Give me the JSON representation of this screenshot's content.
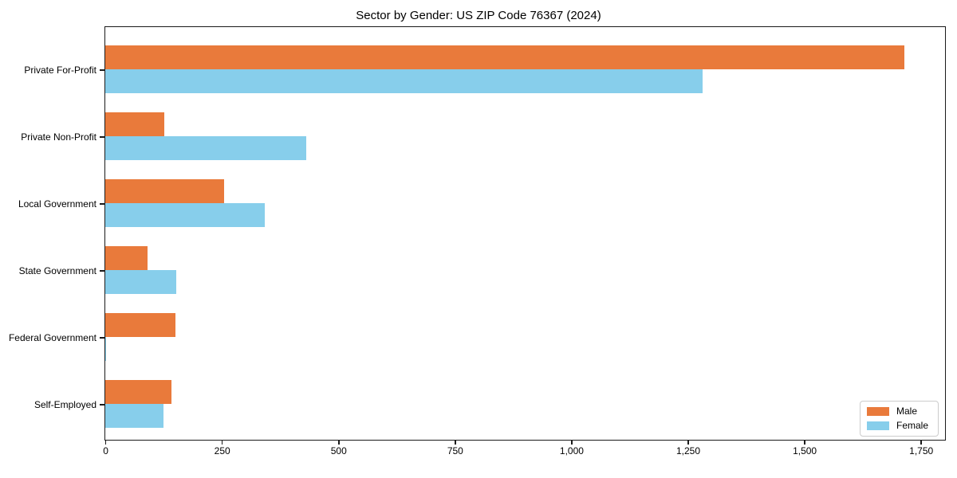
{
  "title": "Sector by Gender: US ZIP Code 76367 (2024)",
  "chart_data": {
    "type": "bar",
    "orientation": "horizontal",
    "title": "Sector by Gender: US ZIP Code 76367 (2024)",
    "categories": [
      "Private For-Profit",
      "Private Non-Profit",
      "Local Government",
      "State Government",
      "Federal Government",
      "Self-Employed"
    ],
    "series": [
      {
        "name": "Male",
        "color": "#e97a3b",
        "values": [
          1715,
          126,
          255,
          90,
          150,
          142
        ]
      },
      {
        "name": "Female",
        "color": "#87ceeb",
        "values": [
          1281,
          431,
          342,
          152,
          2,
          125
        ]
      }
    ],
    "xlim": [
      0,
      1800
    ],
    "xticks": [
      {
        "value": 0,
        "label": "0"
      },
      {
        "value": 250,
        "label": "250"
      },
      {
        "value": 500,
        "label": "500"
      },
      {
        "value": 750,
        "label": "750"
      },
      {
        "value": 1000,
        "label": "1,000"
      },
      {
        "value": 1250,
        "label": "1,250"
      },
      {
        "value": 1500,
        "label": "1,500"
      },
      {
        "value": 1750,
        "label": "1,750"
      }
    ],
    "grid": false,
    "legend_position": "lower right",
    "xlabel": "",
    "ylabel": ""
  }
}
